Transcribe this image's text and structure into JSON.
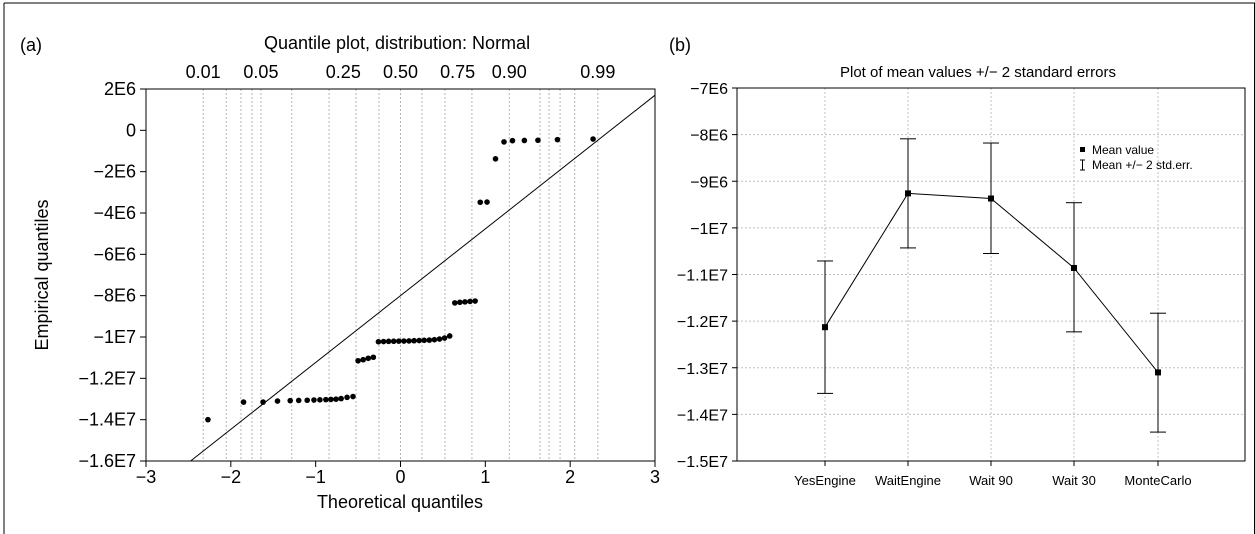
{
  "panels": {
    "a": {
      "label": "(a)"
    },
    "b": {
      "label": "(b)"
    }
  },
  "chart_data": [
    {
      "type": "scatter",
      "panel": "a",
      "title": "Quantile plot, distribution: Normal",
      "xlabel": "Theoretical quantiles",
      "ylabel": "Empirical quantiles",
      "xlim": [
        -3,
        3
      ],
      "ylim": [
        -16000000,
        2000000
      ],
      "x_ticks": [
        -3,
        -2,
        -1,
        0,
        1,
        2,
        3
      ],
      "x_tick_labels": [
        "−3",
        "−2",
        "−1",
        "0",
        "1",
        "2",
        "3"
      ],
      "y_ticks": [
        2000000,
        0,
        -2000000,
        -4000000,
        -6000000,
        -8000000,
        -10000000,
        -12000000,
        -14000000,
        -16000000
      ],
      "y_tick_labels": [
        "2E6",
        "0",
        "−2E6",
        "−4E6",
        "−6E6",
        "−8E6",
        "−1E7",
        "−1.2E7",
        "−1.4E7",
        "−1.6E7"
      ],
      "top_axis": {
        "probabilities": [
          0.01,
          0.05,
          0.25,
          0.5,
          0.75,
          0.9,
          0.99
        ],
        "labels": [
          "0.01",
          "0.05",
          "0.25",
          "0.50",
          "0.75",
          "0.90",
          "0.99"
        ],
        "gridlines_at_quantiles": [
          -2.326,
          -2.054,
          -1.881,
          -1.751,
          -1.645,
          -1.282,
          -0.842,
          -0.524,
          -0.253,
          0,
          0.253,
          0.524,
          0.842,
          1.282,
          1.645,
          1.751,
          1.881,
          2.054,
          2.326
        ]
      },
      "reference_line": {
        "points": [
          [
            -3,
            -17700000
          ],
          [
            3,
            1700000
          ]
        ]
      },
      "points": [
        {
          "x": -2.27,
          "y": -14000000
        },
        {
          "x": -1.85,
          "y": -13150000
        },
        {
          "x": -1.62,
          "y": -13150000
        },
        {
          "x": -1.45,
          "y": -13100000
        },
        {
          "x": -1.3,
          "y": -13080000
        },
        {
          "x": -1.2,
          "y": -13070000
        },
        {
          "x": -1.1,
          "y": -13060000
        },
        {
          "x": -1.02,
          "y": -13050000
        },
        {
          "x": -0.95,
          "y": -13040000
        },
        {
          "x": -0.88,
          "y": -13030000
        },
        {
          "x": -0.82,
          "y": -13020000
        },
        {
          "x": -0.76,
          "y": -13010000
        },
        {
          "x": -0.7,
          "y": -12980000
        },
        {
          "x": -0.63,
          "y": -12920000
        },
        {
          "x": -0.56,
          "y": -12880000
        },
        {
          "x": -0.5,
          "y": -11150000
        },
        {
          "x": -0.44,
          "y": -11100000
        },
        {
          "x": -0.38,
          "y": -11030000
        },
        {
          "x": -0.32,
          "y": -10980000
        },
        {
          "x": -0.26,
          "y": -10230000
        },
        {
          "x": -0.2,
          "y": -10220000
        },
        {
          "x": -0.14,
          "y": -10210000
        },
        {
          "x": -0.08,
          "y": -10205000
        },
        {
          "x": -0.02,
          "y": -10200000
        },
        {
          "x": 0.04,
          "y": -10195000
        },
        {
          "x": 0.1,
          "y": -10190000
        },
        {
          "x": 0.16,
          "y": -10180000
        },
        {
          "x": 0.22,
          "y": -10170000
        },
        {
          "x": 0.28,
          "y": -10160000
        },
        {
          "x": 0.34,
          "y": -10150000
        },
        {
          "x": 0.4,
          "y": -10130000
        },
        {
          "x": 0.46,
          "y": -10100000
        },
        {
          "x": 0.52,
          "y": -10050000
        },
        {
          "x": 0.58,
          "y": -9950000
        },
        {
          "x": 0.64,
          "y": -8350000
        },
        {
          "x": 0.7,
          "y": -8320000
        },
        {
          "x": 0.76,
          "y": -8300000
        },
        {
          "x": 0.82,
          "y": -8280000
        },
        {
          "x": 0.88,
          "y": -8260000
        },
        {
          "x": 0.94,
          "y": -3480000
        },
        {
          "x": 1.02,
          "y": -3470000
        },
        {
          "x": 1.12,
          "y": -1380000
        },
        {
          "x": 1.22,
          "y": -560000
        },
        {
          "x": 1.32,
          "y": -500000
        },
        {
          "x": 1.46,
          "y": -490000
        },
        {
          "x": 1.62,
          "y": -480000
        },
        {
          "x": 1.85,
          "y": -450000
        },
        {
          "x": 2.27,
          "y": -420000
        }
      ]
    },
    {
      "type": "line",
      "panel": "b",
      "title": "Plot of mean values +/− 2 standard errors",
      "categories": [
        "YesEngine",
        "WaitEngine",
        "Wait 90",
        "Wait 30",
        "MonteCarlo"
      ],
      "ylim": [
        -15000000,
        -7000000
      ],
      "y_ticks": [
        -7000000,
        -8000000,
        -9000000,
        -10000000,
        -11000000,
        -12000000,
        -13000000,
        -14000000,
        -15000000
      ],
      "y_tick_labels": [
        "−7E6",
        "−8E6",
        "−9E6",
        "−1E7",
        "−1.1E7",
        "−1.2E7",
        "−1.3E7",
        "−1.4E7",
        "−1.5E7"
      ],
      "grid": true,
      "legend": {
        "placement": "top-right",
        "entries": [
          "Mean value",
          "Mean +/− 2 std.err."
        ]
      },
      "series": [
        {
          "name": "Mean value",
          "values": [
            -12130000,
            -9260000,
            -9370000,
            -10860000,
            -13100000
          ],
          "upper": [
            -10710000,
            -8090000,
            -8180000,
            -9460000,
            -11830000
          ],
          "lower": [
            -13550000,
            -10430000,
            -10550000,
            -12230000,
            -14380000
          ]
        }
      ]
    }
  ]
}
